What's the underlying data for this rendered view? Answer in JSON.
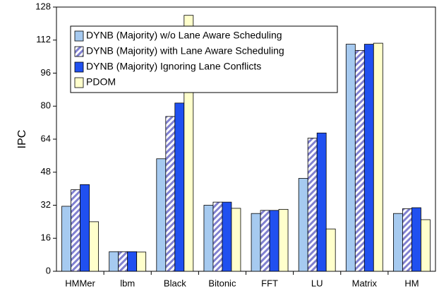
{
  "chart_data": {
    "type": "bar",
    "y_label": "IPC",
    "categories": [
      "HMMer",
      "lbm",
      "Black",
      "Bitonic",
      "FFT",
      "LU",
      "Matrix",
      "HM"
    ],
    "series": [
      {
        "name": "DYNB (Majority) w/o Lane Aware Scheduling",
        "color": "#a6caf0",
        "values": [
          31.5,
          9.5,
          54.5,
          32,
          28,
          45,
          110,
          28
        ]
      },
      {
        "name": "DYNB (Majority) with Lane Aware Scheduling",
        "color": "#8080d0",
        "hatch": true,
        "values": [
          39.5,
          9.5,
          75,
          33.5,
          29.5,
          64.5,
          107,
          30.3
        ]
      },
      {
        "name": "DYNB (Majority) Ignoring Lane Conflicts",
        "color": "#2050f0",
        "values": [
          42,
          9.5,
          81.5,
          33.5,
          29.5,
          67,
          110,
          30.8
        ]
      },
      {
        "name": "PDOM",
        "color": "#ffffcc",
        "values": [
          24,
          9.3,
          124,
          30.5,
          30,
          20.5,
          110.5,
          25
        ]
      }
    ],
    "ylim": [
      0,
      128
    ],
    "yticks": [
      0,
      16,
      32,
      48,
      64,
      80,
      96,
      112,
      128
    ],
    "grid": false,
    "legend": "top-left"
  }
}
